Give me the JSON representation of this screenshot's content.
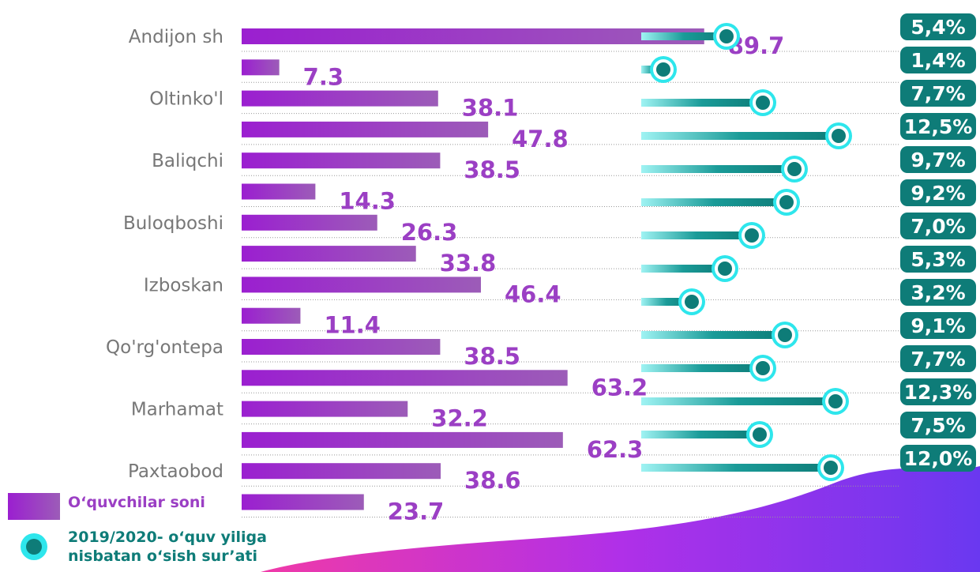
{
  "chart_data": [
    {
      "type": "bar",
      "categories": [
        "Andijon sh",
        null,
        "Oltinko'l",
        null,
        "Baliqchi",
        null,
        "Buloqboshi",
        null,
        "Izboskan",
        null,
        "Qo'rg'ontepa",
        null,
        "Marhamat",
        null,
        "Paxtaobod",
        null
      ],
      "series": [
        {
          "name": "O‘quvchilar soni",
          "color": "#9b3fc4",
          "values": [
            89.7,
            7.3,
            38.1,
            47.8,
            38.5,
            14.3,
            26.3,
            33.8,
            46.4,
            11.4,
            38.5,
            63.2,
            32.2,
            62.3,
            38.6,
            23.7
          ]
        }
      ],
      "xlim": [
        0,
        100
      ]
    },
    {
      "type": "dot",
      "series": [
        {
          "name": "2019/2020- o‘quv yiliga nisbatan o‘sish sur’ati",
          "color": "#0e7c78",
          "values": [
            5.4,
            1.4,
            7.7,
            12.5,
            9.7,
            9.2,
            7.0,
            5.3,
            3.2,
            9.1,
            7.7,
            12.3,
            7.5,
            12.0
          ],
          "value_labels": [
            "5,4%",
            "1,4%",
            "7,7%",
            "12,5%",
            "9,7%",
            "9,2%",
            "7,0%",
            "5,3%",
            "3,2%",
            "9,1%",
            "7,7%",
            "12,3%",
            "7,5%",
            "12,0%"
          ]
        }
      ],
      "xlim": [
        0,
        14
      ]
    }
  ]
}
